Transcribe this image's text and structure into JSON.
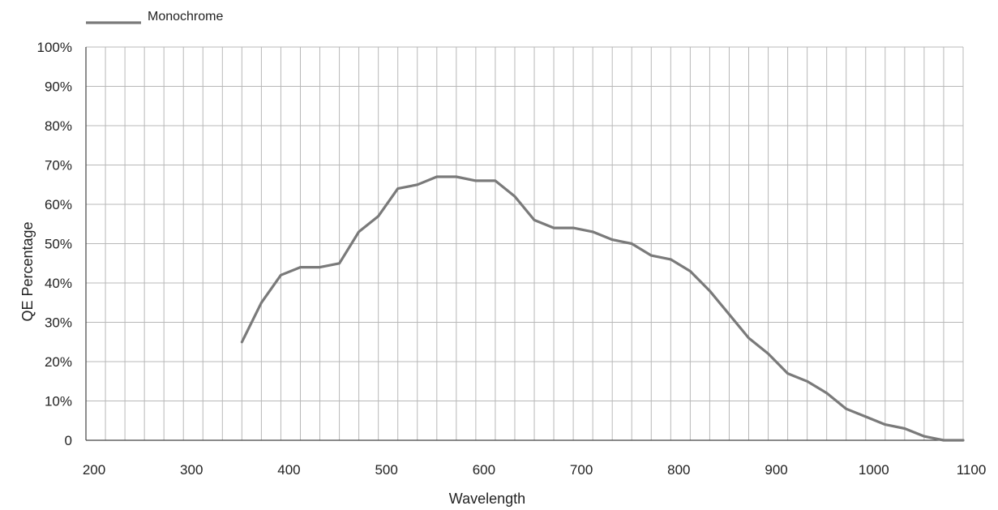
{
  "chart_data": {
    "type": "line",
    "title": "",
    "xlabel": "Wavelength",
    "ylabel": "QE Percentage",
    "xlim": [
      200,
      1100
    ],
    "ylim": [
      0,
      100
    ],
    "x_ticks": [
      200,
      300,
      400,
      500,
      600,
      700,
      800,
      900,
      1000,
      1100
    ],
    "x_tick_labels": [
      "200",
      "300",
      "400",
      "500",
      "600",
      "700",
      "800",
      "900",
      "1000",
      "1100"
    ],
    "y_ticks": [
      0,
      10,
      20,
      30,
      40,
      50,
      60,
      70,
      80,
      90,
      100
    ],
    "y_tick_labels": [
      "0",
      "10%",
      "20%",
      "30%",
      "40%",
      "50%",
      "60%",
      "70%",
      "80%",
      "90%",
      "100%"
    ],
    "x_minor_step": 20,
    "grid": true,
    "legend": {
      "position": "top-left"
    },
    "series": [
      {
        "name": "Monochrome",
        "color": "#7a7a7a",
        "x": [
          360,
          380,
          400,
          420,
          440,
          460,
          480,
          500,
          520,
          540,
          560,
          580,
          600,
          620,
          640,
          660,
          680,
          700,
          720,
          740,
          760,
          780,
          800,
          820,
          840,
          860,
          880,
          900,
          920,
          940,
          960,
          980,
          1000,
          1020,
          1040,
          1060,
          1080,
          1100
        ],
        "y": [
          25,
          35,
          42,
          44,
          44,
          45,
          53,
          57,
          64,
          65,
          67,
          67,
          66,
          66,
          62,
          56,
          54,
          54,
          53,
          51,
          50,
          47,
          46,
          43,
          38,
          32,
          26,
          22,
          17,
          15,
          12,
          8,
          6,
          4,
          3,
          1,
          0,
          0
        ]
      }
    ]
  }
}
